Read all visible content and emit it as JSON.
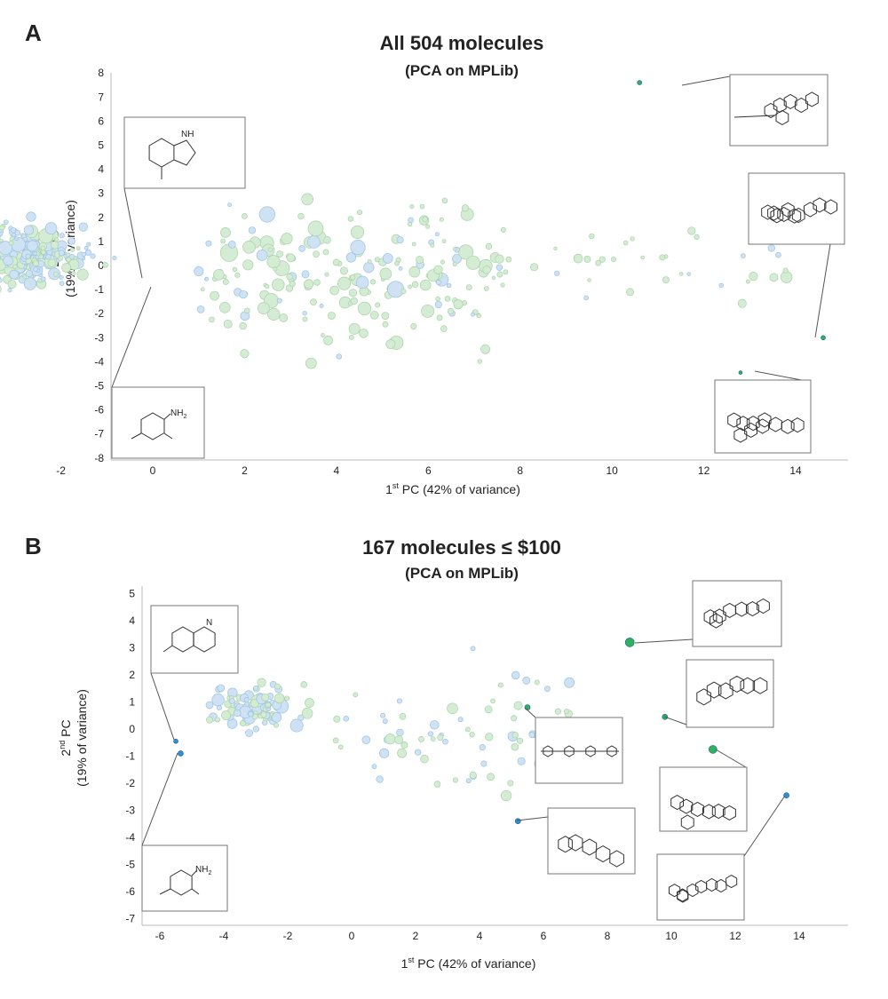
{
  "chart_data": [
    {
      "type": "scatter",
      "panel_label": "A",
      "title": "All 504 molecules",
      "subtitle": "(PCA on MPLib)",
      "xlabel": "1st PC (42% of variance)",
      "ylabel": "2nd PC (19% of variance)",
      "xlim": [
        -6.5,
        15.5
      ],
      "ylim": [
        -8.2,
        8.2
      ],
      "xticks": [
        -6,
        -4,
        -2,
        0,
        2,
        4,
        6,
        8,
        10,
        12,
        14
      ],
      "yticks": [
        -8,
        -7,
        -6,
        -5,
        -4,
        -3,
        -2,
        -1,
        0,
        1,
        2,
        3,
        4,
        5,
        6,
        7,
        8
      ],
      "colors": {
        "blue": "#cfe2f3",
        "green": "#d5ecd4",
        "blue_hi": "#2f8fd8",
        "green_hi": "#2db35d"
      },
      "highlighted": [
        {
          "x": -5.6,
          "y": -0.55,
          "color": "blue_hi",
          "size": 2
        },
        {
          "x": -5.4,
          "y": -0.85,
          "color": "blue_hi",
          "size": 2
        },
        {
          "x": 10.6,
          "y": 7.6,
          "color": "green_hi",
          "size": 2
        },
        {
          "x": 14.6,
          "y": -3.0,
          "color": "green_hi",
          "size": 2
        },
        {
          "x": 12.8,
          "y": -4.45,
          "color": "green_hi",
          "size": 1.5
        }
      ],
      "insets": [
        {
          "label": "NH",
          "molecule": "indole"
        },
        {
          "label": "NH2",
          "molecule": "aniline"
        },
        {
          "label": "",
          "molecule": "macrocycle"
        },
        {
          "label": "",
          "molecule": "steroid-glycoside-1"
        },
        {
          "label": "",
          "molecule": "steroid-glycoside-2"
        }
      ]
    },
    {
      "type": "scatter",
      "panel_label": "B",
      "title": "167 molecules ≤ $100",
      "subtitle": "(PCA on MPLib)",
      "xlabel": "1st PC (42% of variance)",
      "ylabel": "2nd PC (19% of variance)",
      "xlim": [
        -6.5,
        15.5
      ],
      "ylim": [
        -7.4,
        5.4
      ],
      "xticks": [
        -6,
        -4,
        -2,
        0,
        2,
        4,
        6,
        8,
        10,
        12,
        14
      ],
      "yticks": [
        -7,
        -6,
        -5,
        -4,
        -3,
        -2,
        -1,
        0,
        1,
        2,
        3,
        4,
        5
      ],
      "colors": {
        "blue": "#cfe2f3",
        "green": "#d5ecd4",
        "blue_hi": "#2f8fd8",
        "green_hi": "#2db35d"
      },
      "highlighted": [
        {
          "x": -5.5,
          "y": -0.45,
          "color": "blue_hi",
          "size": 2
        },
        {
          "x": -5.35,
          "y": -0.9,
          "color": "blue_hi",
          "size": 2.5
        },
        {
          "x": 8.7,
          "y": 3.2,
          "color": "green_hi",
          "size": 4.5
        },
        {
          "x": 5.5,
          "y": 0.8,
          "color": "green_hi",
          "size": 2.5
        },
        {
          "x": 9.8,
          "y": 0.45,
          "color": "green_hi",
          "size": 2.5
        },
        {
          "x": 11.3,
          "y": -0.75,
          "color": "green_hi",
          "size": 4
        },
        {
          "x": 5.2,
          "y": -3.4,
          "color": "blue_hi",
          "size": 2.5
        },
        {
          "x": 13.6,
          "y": -2.45,
          "color": "blue_hi",
          "size": 2.5
        }
      ],
      "insets": [
        {
          "label": "N",
          "molecule": "quinoline"
        },
        {
          "label": "NH2",
          "molecule": "aniline"
        },
        {
          "label": "",
          "molecule": "glycoside"
        },
        {
          "label": "",
          "molecule": "macrolide"
        },
        {
          "label": "",
          "molecule": "linear-chain"
        },
        {
          "label": "",
          "molecule": "bile-acid"
        },
        {
          "label": "",
          "molecule": "polycycle-1"
        },
        {
          "label": "",
          "molecule": "polycycle-2"
        }
      ]
    }
  ]
}
